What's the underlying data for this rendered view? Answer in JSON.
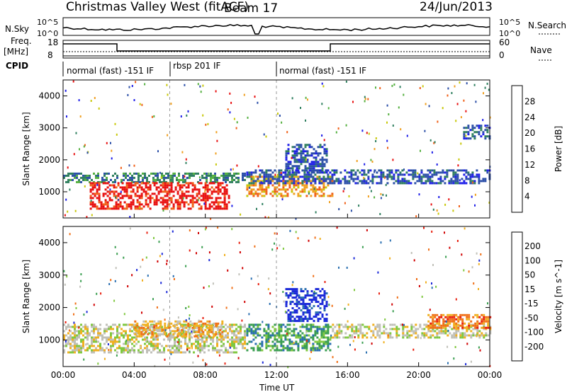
{
  "header": {
    "station": "Christmas Valley West (fitACF)",
    "beam": "Beam 17",
    "date": "24/Jun/2013"
  },
  "summary": {
    "nsky_label": "N.Sky",
    "nsearch_label": "N.Search",
    "log_top": "10^5",
    "log_bottom": "10^0",
    "freq_label_1": "Freq.",
    "freq_label_2": "[MHz]",
    "freq_top": "18",
    "freq_bottom": "8",
    "nave_top": "60",
    "nave_bottom": "0",
    "nave_label": "Nave",
    "cpid_label": "CPID",
    "cpid_segments": [
      {
        "label": "normal (fast) -151 IF",
        "start_hour": 0,
        "end_hour": 6
      },
      {
        "label": "rbsp 201 IF",
        "start_hour": 6,
        "end_hour": 12
      },
      {
        "label": "normal (fast) -151 IF",
        "start_hour": 12,
        "end_hour": 24
      }
    ]
  },
  "chart_data": [
    {
      "type": "heatmap",
      "name": "power",
      "ylabel": "Slant Range [km]",
      "xlabel": "Time UT",
      "xlim": [
        0,
        24
      ],
      "ylim": [
        180,
        4500
      ],
      "x_ticks": [
        "00:00",
        "04:00",
        "08:00",
        "12:00",
        "16:00",
        "20:00",
        "00:00"
      ],
      "y_ticks": [
        "1000",
        "2000",
        "3000",
        "4000"
      ],
      "y_tick_values": [
        1000,
        2000,
        3000,
        4000
      ],
      "colorbar": {
        "label": "Power [dB]",
        "ticks": [
          "4",
          "8",
          "12",
          "16",
          "20",
          "24",
          "28"
        ],
        "colors": [
          "#1f1fe8",
          "#2c4fa8",
          "#2f7f5f",
          "#55b040",
          "#c8c80a",
          "#f0a020",
          "#f06018",
          "#e81010"
        ]
      },
      "regions": [
        {
          "start_hour": 0.0,
          "end_hour": 10.2,
          "range_min": 1300,
          "range_max": 1600,
          "level": 2
        },
        {
          "start_hour": 1.5,
          "end_hour": 9.3,
          "range_min": 500,
          "range_max": 1300,
          "level": 7
        },
        {
          "start_hour": 10.3,
          "end_hour": 15.2,
          "range_min": 900,
          "range_max": 1500,
          "level": 5
        },
        {
          "start_hour": 10.3,
          "end_hour": 24.0,
          "range_min": 1300,
          "range_max": 1700,
          "level": 1
        },
        {
          "start_hour": 12.5,
          "end_hour": 14.8,
          "range_min": 1600,
          "range_max": 2500,
          "level": 1
        },
        {
          "start_hour": 22.5,
          "end_hour": 24.0,
          "range_min": 2700,
          "range_max": 3100,
          "level": 1
        }
      ]
    },
    {
      "type": "heatmap",
      "name": "velocity",
      "ylabel": "Slant Range [km]",
      "xlabel": "Time UT",
      "xlim": [
        0,
        24
      ],
      "ylim": [
        180,
        4500
      ],
      "x_ticks": [
        "00:00",
        "04:00",
        "08:00",
        "12:00",
        "16:00",
        "20:00",
        "00:00"
      ],
      "y_ticks": [
        "1000",
        "2000",
        "3000",
        "4000"
      ],
      "y_tick_values": [
        1000,
        2000,
        3000,
        4000
      ],
      "colorbar": {
        "label": "Velocity [m s^-1]",
        "ticks": [
          "200",
          "100",
          "50",
          "15",
          "-15",
          "-50",
          "-100",
          "-200"
        ],
        "colors": [
          "#1a28d8",
          "#2a6fb0",
          "#3a9e50",
          "#80c840",
          "#c0c0b8",
          "#f0b020",
          "#f07018",
          "#e82010",
          "#d00000"
        ]
      },
      "regions": [
        {
          "start_hour": 0.0,
          "end_hour": 10.2,
          "range_min": 600,
          "range_max": 1500,
          "level": 4
        },
        {
          "start_hour": 4.0,
          "end_hour": 9.0,
          "range_min": 1100,
          "range_max": 1600,
          "level": 5
        },
        {
          "start_hour": 10.3,
          "end_hour": 15.0,
          "range_min": 700,
          "range_max": 1500,
          "level": 2
        },
        {
          "start_hour": 12.5,
          "end_hour": 14.8,
          "range_min": 1600,
          "range_max": 2600,
          "level": 0
        },
        {
          "start_hour": 15.0,
          "end_hour": 24.0,
          "range_min": 1100,
          "range_max": 1500,
          "level": 4
        },
        {
          "start_hour": 20.5,
          "end_hour": 24.0,
          "range_min": 1400,
          "range_max": 1800,
          "level": 6
        }
      ]
    }
  ]
}
